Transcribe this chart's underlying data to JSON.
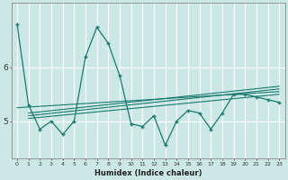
{
  "xlabel": "Humidex (Indice chaleur)",
  "x": [
    0,
    1,
    2,
    3,
    4,
    5,
    6,
    7,
    8,
    9,
    10,
    11,
    12,
    13,
    14,
    15,
    16,
    17,
    18,
    19,
    20,
    21,
    22,
    23
  ],
  "y_main": [
    6.8,
    5.3,
    4.85,
    5.0,
    4.75,
    5.0,
    6.2,
    6.75,
    6.45,
    5.85,
    4.95,
    4.9,
    5.1,
    4.55,
    5.0,
    5.2,
    5.15,
    4.85,
    5.15,
    5.5,
    5.5,
    5.45,
    5.4,
    5.35
  ],
  "line_color": "#1a7a6e",
  "bg_color": "#cce8e6",
  "grid_color": "#ffffff",
  "axis_color": "#888888",
  "yticks": [
    5,
    6
  ],
  "ylim": [
    4.3,
    7.2
  ],
  "xlim": [
    -0.5,
    23.5
  ],
  "trend1_x0": 0,
  "trend1_x1": 23,
  "trend1_y0": 5.25,
  "trend1_y1": 5.55,
  "trend2_x0": 1,
  "trend2_x1": 23,
  "trend2_y0": 5.05,
  "trend2_y1": 5.5,
  "trend3_x0": 1,
  "trend3_x1": 23,
  "trend3_y0": 5.1,
  "trend3_y1": 5.6,
  "trend4_x0": 1,
  "trend4_x1": 23,
  "trend4_y0": 5.15,
  "trend4_y1": 5.65
}
